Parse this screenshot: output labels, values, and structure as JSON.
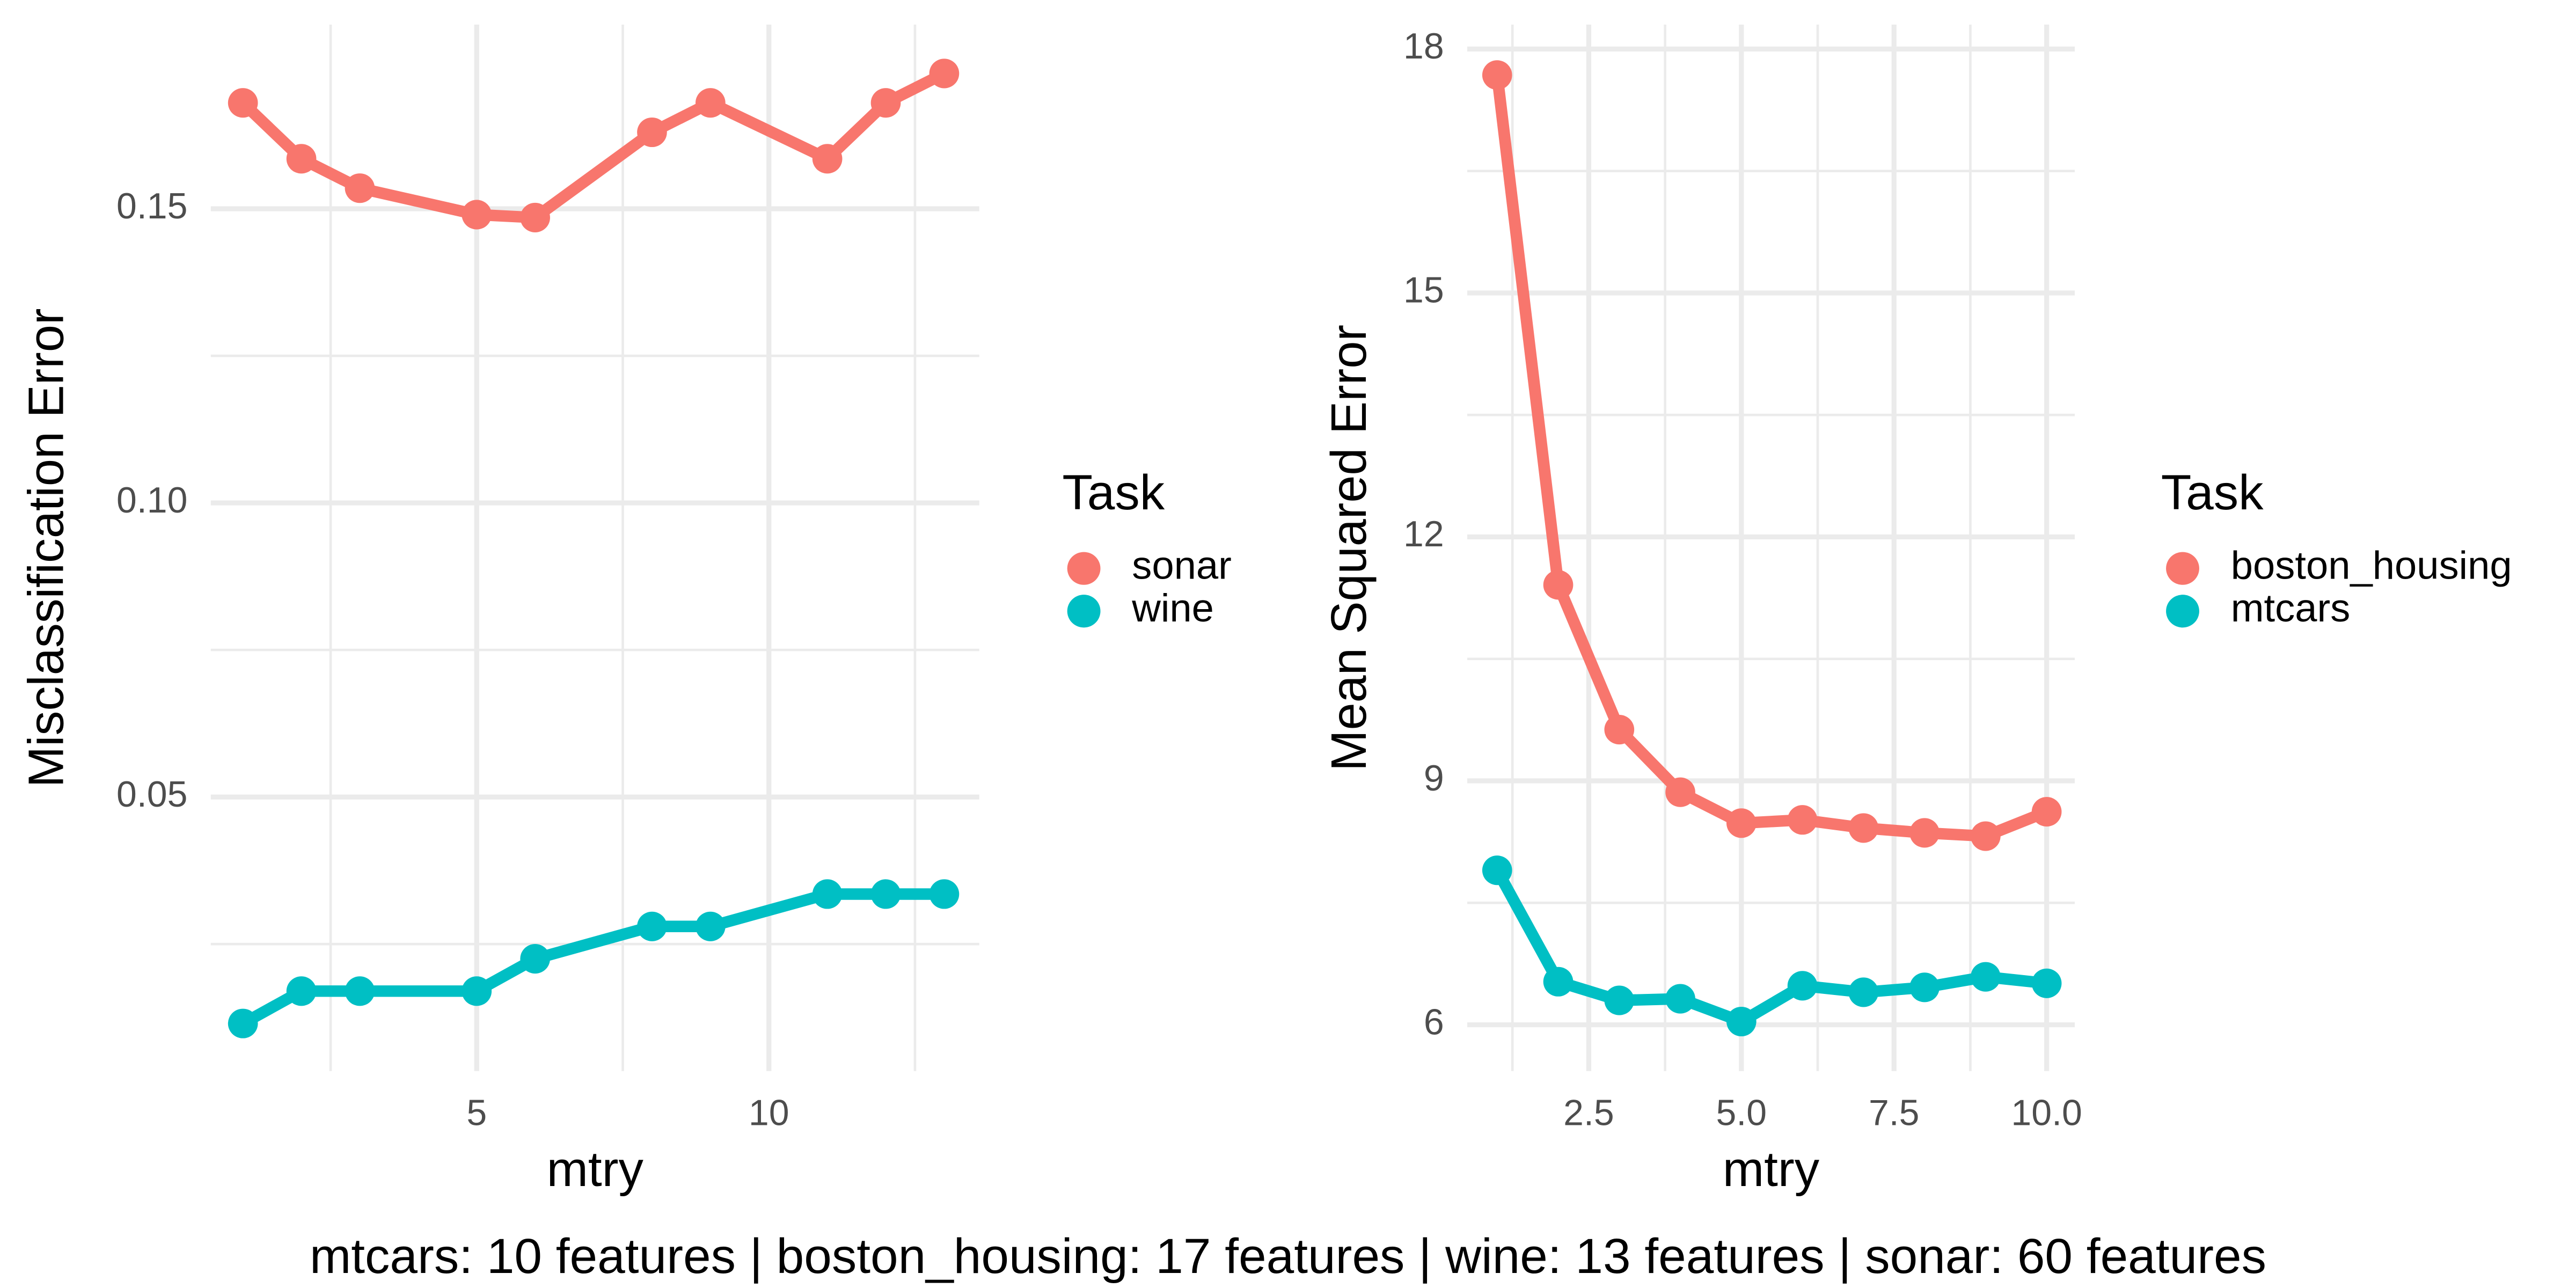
{
  "chart_data": [
    {
      "type": "line",
      "x_label": "mtry",
      "y_label": "Misclassification Error",
      "legend_title": "Task",
      "x": [
        1,
        2,
        3,
        5,
        6,
        8,
        9,
        11,
        12,
        13
      ],
      "series": [
        {
          "name": "sonar",
          "color": "#F8766D",
          "values": [
            0.168,
            0.1585,
            0.1535,
            0.149,
            0.1485,
            0.163,
            0.168,
            0.1585,
            0.168,
            0.173
          ]
        },
        {
          "name": "wine",
          "color": "#00BFC4",
          "values": [
            0.0115,
            0.017,
            0.017,
            0.017,
            0.0225,
            0.028,
            0.028,
            0.0335,
            0.0335,
            0.0335
          ]
        }
      ],
      "xlim": [
        0.45,
        13.6
      ],
      "ylim": [
        0.0034,
        0.1813
      ],
      "xticks": [
        5,
        10
      ],
      "yticks": [
        0.05,
        {
          "value": 0.1,
          "label": "0.10"
        },
        0.15
      ],
      "x_minor_ticks": [
        2.5,
        7.5,
        12.5
      ],
      "y_minor_ticks": [
        0.025,
        0.075,
        0.125
      ],
      "grid": true
    },
    {
      "type": "line",
      "x_label": "mtry",
      "y_label": "Mean Squared Error",
      "legend_title": "Task",
      "x": [
        1,
        2,
        3,
        4,
        5,
        6,
        7,
        8,
        9,
        10
      ],
      "series": [
        {
          "name": "boston_housing",
          "color": "#F8766D",
          "values": [
            17.68,
            11.41,
            9.63,
            8.86,
            8.48,
            8.52,
            8.42,
            8.36,
            8.32,
            8.62
          ]
        },
        {
          "name": "mtcars",
          "color": "#00BFC4",
          "values": [
            7.9,
            6.53,
            6.3,
            6.32,
            6.04,
            6.48,
            6.4,
            6.46,
            6.59,
            6.51
          ]
        }
      ],
      "xlim": [
        0.51,
        10.46
      ],
      "ylim": [
        5.43,
        18.3
      ],
      "xticks": [
        2.5,
        {
          "value": 5,
          "label": "5.0"
        },
        7.5,
        {
          "value": 10,
          "label": "10.0"
        }
      ],
      "yticks": [
        6,
        9,
        12,
        15,
        18
      ],
      "x_minor_ticks": [
        1.25,
        3.75,
        6.25,
        8.75
      ],
      "y_minor_ticks": [
        7.5,
        10.5,
        13.5,
        16.5
      ],
      "grid": true
    }
  ],
  "caption": "mtcars: 10 features | boston_housing: 17 features | wine: 13 features | sonar: 60 features"
}
